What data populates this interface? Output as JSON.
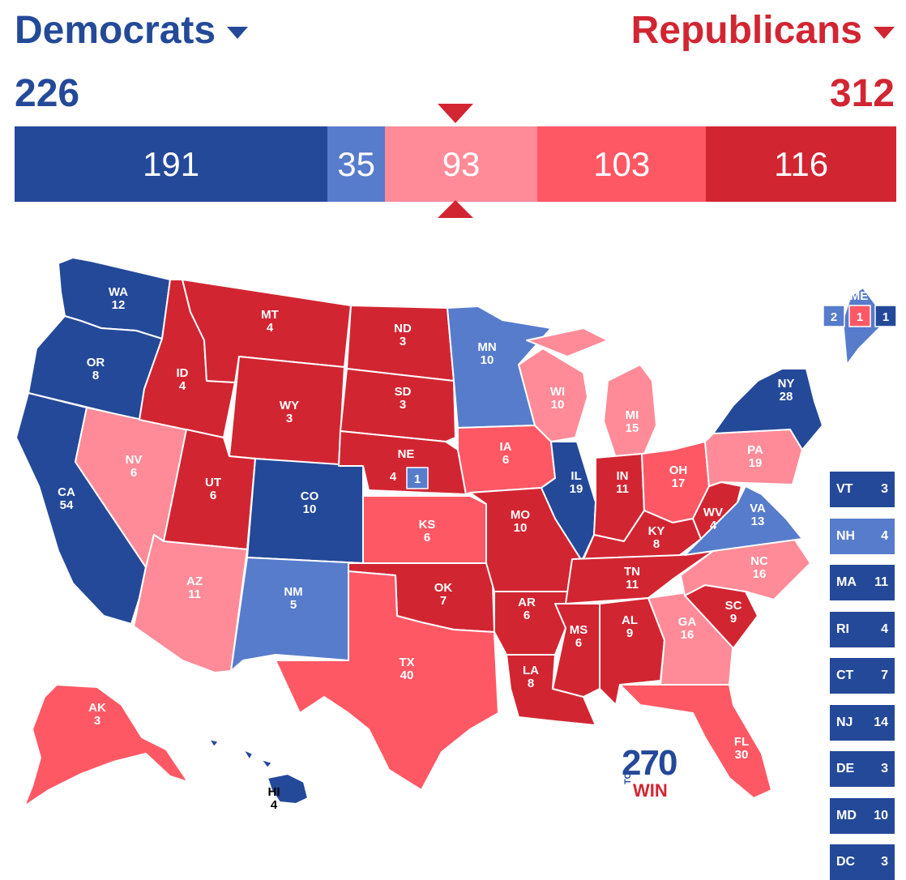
{
  "header": {
    "dem_label": "Democrats",
    "rep_label": "Republicans",
    "dem_total": "226",
    "rep_total": "312"
  },
  "bar": [
    {
      "label": "191",
      "value": 191,
      "color": "#244999"
    },
    {
      "label": "35",
      "value": 35,
      "color": "#577ccc"
    },
    {
      "label": "93",
      "value": 93,
      "color": "#ff8b98"
    },
    {
      "label": "103",
      "value": 103,
      "color": "#ff5865"
    },
    {
      "label": "116",
      "value": 116,
      "color": "#d22532"
    }
  ],
  "colors": {
    "safe_d": "#244999",
    "likely_d": "#577ccc",
    "lean_r": "#ff8b98",
    "likely_r": "#ff5865",
    "safe_r": "#d22532"
  },
  "states": [
    {
      "abbr": "WA",
      "ev": "12",
      "cat": "safe_d"
    },
    {
      "abbr": "OR",
      "ev": "8",
      "cat": "safe_d"
    },
    {
      "abbr": "CA",
      "ev": "54",
      "cat": "safe_d"
    },
    {
      "abbr": "NV",
      "ev": "6",
      "cat": "lean_r"
    },
    {
      "abbr": "ID",
      "ev": "4",
      "cat": "safe_r"
    },
    {
      "abbr": "MT",
      "ev": "4",
      "cat": "safe_r"
    },
    {
      "abbr": "WY",
      "ev": "3",
      "cat": "safe_r"
    },
    {
      "abbr": "UT",
      "ev": "6",
      "cat": "safe_r"
    },
    {
      "abbr": "AZ",
      "ev": "11",
      "cat": "lean_r"
    },
    {
      "abbr": "CO",
      "ev": "10",
      "cat": "safe_d"
    },
    {
      "abbr": "NM",
      "ev": "5",
      "cat": "likely_d"
    },
    {
      "abbr": "ND",
      "ev": "3",
      "cat": "safe_r"
    },
    {
      "abbr": "SD",
      "ev": "3",
      "cat": "safe_r"
    },
    {
      "abbr": "NE",
      "ev": "4",
      "cat": "safe_r"
    },
    {
      "abbr": "KS",
      "ev": "6",
      "cat": "likely_r"
    },
    {
      "abbr": "OK",
      "ev": "7",
      "cat": "safe_r"
    },
    {
      "abbr": "TX",
      "ev": "40",
      "cat": "likely_r"
    },
    {
      "abbr": "MN",
      "ev": "10",
      "cat": "likely_d"
    },
    {
      "abbr": "IA",
      "ev": "6",
      "cat": "likely_r"
    },
    {
      "abbr": "MO",
      "ev": "10",
      "cat": "safe_r"
    },
    {
      "abbr": "AR",
      "ev": "6",
      "cat": "safe_r"
    },
    {
      "abbr": "LA",
      "ev": "8",
      "cat": "safe_r"
    },
    {
      "abbr": "WI",
      "ev": "10",
      "cat": "lean_r"
    },
    {
      "abbr": "IL",
      "ev": "19",
      "cat": "safe_d"
    },
    {
      "abbr": "MI",
      "ev": "15",
      "cat": "lean_r"
    },
    {
      "abbr": "IN",
      "ev": "11",
      "cat": "safe_r"
    },
    {
      "abbr": "OH",
      "ev": "17",
      "cat": "likely_r"
    },
    {
      "abbr": "KY",
      "ev": "8",
      "cat": "safe_r"
    },
    {
      "abbr": "TN",
      "ev": "11",
      "cat": "safe_r"
    },
    {
      "abbr": "MS",
      "ev": "6",
      "cat": "safe_r"
    },
    {
      "abbr": "AL",
      "ev": "9",
      "cat": "safe_r"
    },
    {
      "abbr": "GA",
      "ev": "16",
      "cat": "lean_r"
    },
    {
      "abbr": "FL",
      "ev": "30",
      "cat": "likely_r"
    },
    {
      "abbr": "SC",
      "ev": "9",
      "cat": "safe_r"
    },
    {
      "abbr": "NC",
      "ev": "16",
      "cat": "lean_r"
    },
    {
      "abbr": "VA",
      "ev": "13",
      "cat": "likely_d"
    },
    {
      "abbr": "WV",
      "ev": "4",
      "cat": "safe_r"
    },
    {
      "abbr": "PA",
      "ev": "19",
      "cat": "lean_r"
    },
    {
      "abbr": "NY",
      "ev": "28",
      "cat": "safe_d"
    },
    {
      "abbr": "ME",
      "ev": "",
      "cat": "likely_d"
    },
    {
      "abbr": "AK",
      "ev": "3",
      "cat": "likely_r"
    },
    {
      "abbr": "HI",
      "ev": "4",
      "cat": "safe_d"
    }
  ],
  "ne_district": "1",
  "me_districts": [
    "2",
    "1",
    "1"
  ],
  "sidebar": [
    {
      "abbr": "VT",
      "ev": "3",
      "cat": "safe_d"
    },
    {
      "abbr": "NH",
      "ev": "4",
      "cat": "likely_d"
    },
    {
      "abbr": "MA",
      "ev": "11",
      "cat": "safe_d"
    },
    {
      "abbr": "RI",
      "ev": "4",
      "cat": "safe_d"
    },
    {
      "abbr": "CT",
      "ev": "7",
      "cat": "safe_d"
    },
    {
      "abbr": "NJ",
      "ev": "14",
      "cat": "safe_d"
    },
    {
      "abbr": "DE",
      "ev": "3",
      "cat": "safe_d"
    },
    {
      "abbr": "MD",
      "ev": "10",
      "cat": "safe_d"
    },
    {
      "abbr": "DC",
      "ev": "3",
      "cat": "safe_d"
    }
  ],
  "logo": {
    "num": "270",
    "to": "TO",
    "win": "WIN"
  }
}
